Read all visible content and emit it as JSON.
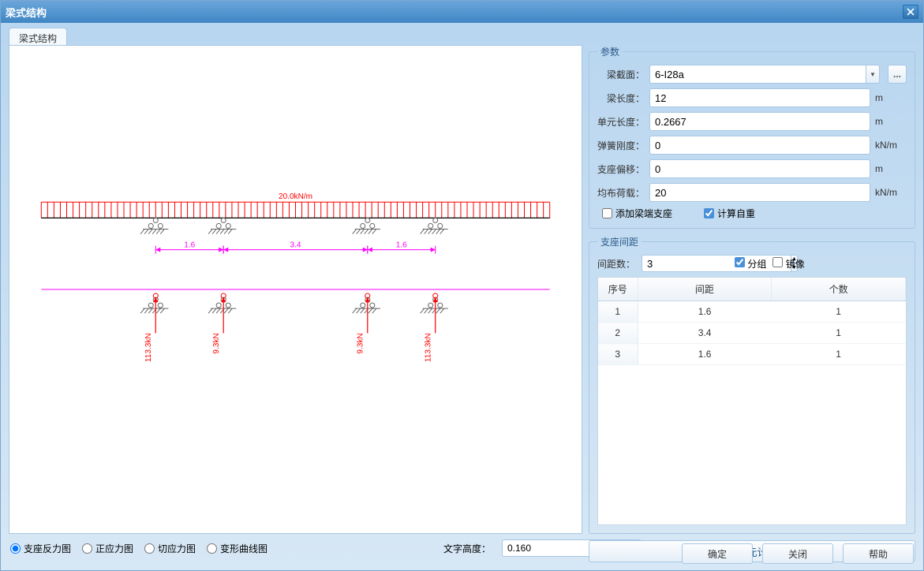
{
  "window": {
    "title": "梁式结构"
  },
  "tab": {
    "label": "梁式结构"
  },
  "bottom": {
    "radio_reaction": "支座反力图",
    "radio_stress": "正应力图",
    "radio_shear": "切应力图",
    "radio_deform": "变形曲线图",
    "text_height_label": "文字高度：",
    "text_height_value": "0.160"
  },
  "params": {
    "legend": "参数",
    "section_label": "梁截面：",
    "section_value": "6-I28a",
    "length_label": "梁长度：",
    "length_value": "12",
    "length_unit": "m",
    "elem_label": "单元长度：",
    "elem_value": "0.2667",
    "elem_unit": "m",
    "spring_label": "弹簧刚度：",
    "spring_value": "0",
    "spring_unit": "kN/m",
    "offset_label": "支座偏移：",
    "offset_value": "0",
    "offset_unit": "m",
    "udl_label": "均布荷载：",
    "udl_value": "20",
    "udl_unit": "kN/m",
    "chk_endsupport": "添加梁端支座",
    "chk_selfweight": "计算自重"
  },
  "spacing": {
    "legend": "支座间距",
    "count_label": "间距数：",
    "count_value": "3",
    "chk_group": "分组",
    "chk_mirror": "镜像",
    "col_idx": "序号",
    "col_dist": "间距",
    "col_count": "个数",
    "rows": [
      {
        "idx": "1",
        "dist": "1.6",
        "count": "1"
      },
      {
        "idx": "2",
        "dist": "3.4",
        "count": "1"
      },
      {
        "idx": "3",
        "dist": "1.6",
        "count": "1"
      }
    ]
  },
  "result_btn": "查询有限元计算结果",
  "footer_ok": "确定",
  "footer_close": "关闭",
  "footer_help": "帮助",
  "diagram": {
    "beam_length": 12,
    "udl_label": "20.0kN/m",
    "load_color": "#ff0000",
    "dim_color": "#ff00ff",
    "support_color": "#666666",
    "supports_x": [
      2.7,
      4.3,
      7.7,
      9.3
    ],
    "dims": [
      {
        "from": 2.7,
        "to": 4.3,
        "label": "1.6"
      },
      {
        "from": 4.3,
        "to": 7.7,
        "label": "3.4"
      },
      {
        "from": 7.7,
        "to": 9.3,
        "label": "1.6"
      }
    ],
    "reactions": [
      {
        "x": 2.7,
        "label": "113.3kN"
      },
      {
        "x": 4.3,
        "label": "9.3kN"
      },
      {
        "x": 7.7,
        "label": "9.3kN"
      },
      {
        "x": 9.3,
        "label": "113.3kN"
      }
    ]
  }
}
